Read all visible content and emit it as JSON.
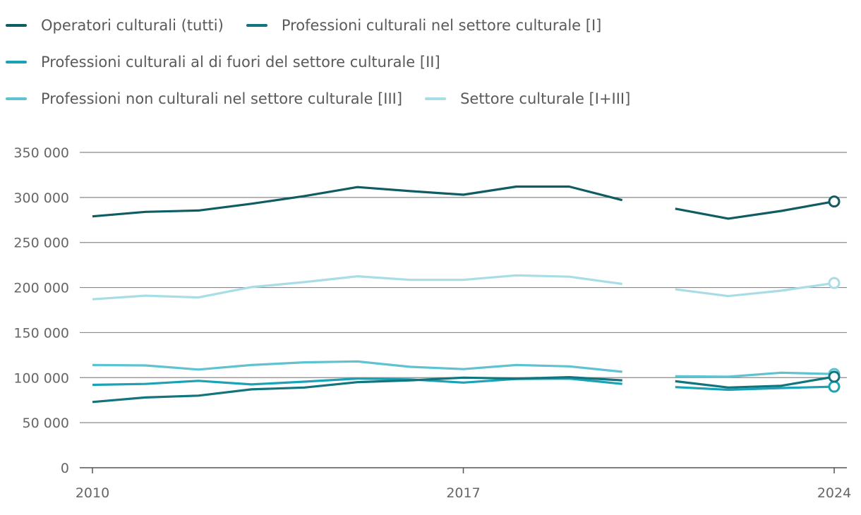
{
  "chart_data": {
    "type": "line",
    "title": "",
    "xlabel": "",
    "ylabel": "",
    "ylim": [
      0,
      350000
    ],
    "yticks": [
      0,
      50000,
      100000,
      150000,
      200000,
      250000,
      300000,
      350000
    ],
    "ytick_labels": [
      "0",
      "50 000",
      "100 000",
      "150 000",
      "200 000",
      "250 000",
      "300 000",
      "350 000"
    ],
    "xlim": [
      2010,
      2024
    ],
    "xticks": [
      2010,
      2017,
      2024
    ],
    "xtick_labels": [
      "2010",
      "2017",
      "2024"
    ],
    "grid": "horizontal",
    "legend_position": "top",
    "x": [
      2010,
      2011,
      2012,
      2013,
      2014,
      2015,
      2016,
      2017,
      2018,
      2019,
      2020,
      2021,
      2022,
      2023,
      2024
    ],
    "series": [
      {
        "name": "Operatori culturali (tutti)",
        "color": "#0f5c63",
        "values": [
          279000,
          284000,
          285500,
          293000,
          301500,
          311500,
          307000,
          303000,
          312000,
          312000,
          297000,
          287500,
          276500,
          285000,
          295500
        ]
      },
      {
        "name": "Professioni culturali nel settore culturale [I]",
        "color": "#12747c",
        "values": [
          73000,
          78000,
          80000,
          87000,
          89000,
          95000,
          97000,
          100000,
          99000,
          100500,
          97000,
          96000,
          89000,
          91000,
          101000
        ]
      },
      {
        "name": "Professioni culturali al di fuori del settore culturale [II]",
        "color": "#1aa3b6",
        "values": [
          92000,
          93000,
          96500,
          92500,
          95500,
          99000,
          98000,
          94500,
          98500,
          99000,
          93000,
          89500,
          86500,
          88500,
          90000
        ]
      },
      {
        "name": "Professioni non culturali nel settore culturale [III]",
        "color": "#5ec2d0",
        "values": [
          114000,
          113500,
          109000,
          114000,
          117000,
          118000,
          112000,
          109500,
          114000,
          112500,
          106500,
          101500,
          101000,
          105500,
          104000
        ]
      },
      {
        "name": "Settore culturale [I+III]",
        "color": "#a8dde5",
        "values": [
          187000,
          191000,
          189000,
          200500,
          206000,
          212500,
          208500,
          208500,
          213500,
          212000,
          204000,
          198000,
          190500,
          196500,
          205000
        ]
      }
    ],
    "gap_between": [
      2020,
      2021
    ],
    "end_markers": [
      2024
    ]
  }
}
